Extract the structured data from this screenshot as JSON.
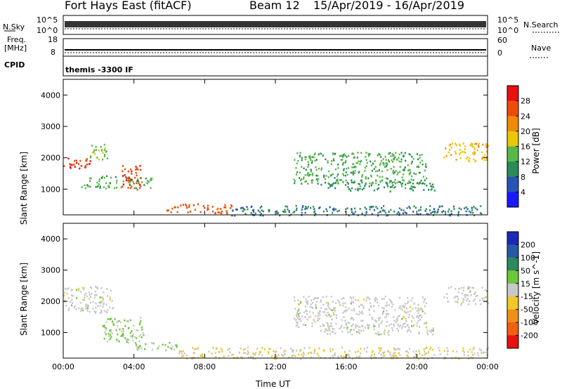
{
  "header": {
    "station": "Fort Hays East (fitACF)",
    "beam": "Beam 12",
    "dates": "15/Apr/2019 - 16/Apr/2019"
  },
  "top_panels": {
    "nsky_label": "N.Sky",
    "nsky_ticks": [
      "10^5",
      "10^0"
    ],
    "nsearch_label": "N.Search",
    "nsearch_ticks": [
      "10^5",
      "10^0"
    ],
    "freq_label": "Freq.",
    "freq_unit": "[MHz]",
    "freq_ticks": [
      "18",
      "8"
    ],
    "nave_label": "Nave",
    "nave_ticks": [
      "60",
      "0"
    ],
    "cpid_label": "CPID",
    "cpid_value": "themis -3300 IF"
  },
  "chart_data": [
    {
      "type": "heatmap",
      "title": "",
      "xlabel": "Time UT",
      "ylabel": "Slant Range [km]",
      "xlim": [
        "00:00",
        "24:00"
      ],
      "ylim": [
        180,
        4500
      ],
      "x_ticks": [
        "00:00",
        "04:00",
        "08:00",
        "12:00",
        "16:00",
        "20:00",
        "00:00"
      ],
      "y_ticks": [
        "1000",
        "2000",
        "3000",
        "4000"
      ],
      "colorbar": {
        "label": "Power [dB]",
        "ticks": [
          "4",
          "8",
          "12",
          "16",
          "20",
          "24",
          "28"
        ],
        "range": [
          0,
          30
        ],
        "colors": [
          "#1a1aff",
          "#2855b4",
          "#2a8c5a",
          "#58b848",
          "#e8c808",
          "#f08a0a",
          "#f04a0a",
          "#e81010"
        ]
      },
      "regions": [
        {
          "t0": 0.0,
          "t1": 1.5,
          "r0": 1650,
          "r1": 2050,
          "value": 26
        },
        {
          "t0": 1.5,
          "t1": 2.5,
          "r0": 1900,
          "r1": 2450,
          "value": 14
        },
        {
          "t0": 1.0,
          "t1": 5.0,
          "r0": 1050,
          "r1": 1450,
          "value": 12
        },
        {
          "t0": 3.3,
          "t1": 4.4,
          "r0": 1000,
          "r1": 1800,
          "value": 26
        },
        {
          "t0": 5.8,
          "t1": 9.5,
          "r0": 250,
          "r1": 550,
          "value": 24
        },
        {
          "t0": 9.5,
          "t1": 24.0,
          "r0": 180,
          "r1": 500,
          "value": 8
        },
        {
          "t0": 13.0,
          "t1": 20.5,
          "r0": 1200,
          "r1": 2200,
          "value": 12
        },
        {
          "t0": 14.5,
          "t1": 21.0,
          "r0": 950,
          "r1": 1250,
          "value": 10
        },
        {
          "t0": 21.5,
          "t1": 24.0,
          "r0": 1900,
          "r1": 2500,
          "value": 18
        }
      ]
    },
    {
      "type": "heatmap",
      "title": "",
      "xlabel": "Time UT",
      "ylabel": "Slant Range [km]",
      "xlim": [
        "00:00",
        "24:00"
      ],
      "ylim": [
        180,
        4500
      ],
      "x_ticks": [
        "00:00",
        "04:00",
        "08:00",
        "12:00",
        "16:00",
        "20:00",
        "00:00"
      ],
      "y_ticks": [
        "1000",
        "2000",
        "3000",
        "4000"
      ],
      "colorbar": {
        "label": "Velocity [m s^-1]",
        "ticks": [
          "200",
          "100",
          "50",
          "15",
          "-15",
          "-50",
          "-100",
          "-200"
        ],
        "range": [
          -250,
          250
        ],
        "colors": [
          "#1a2ab8",
          "#2a58a8",
          "#2c8a5c",
          "#6cc838",
          "#c8c8c8",
          "#f0c828",
          "#f09018",
          "#f06010",
          "#e81010"
        ]
      },
      "regions": [
        {
          "t0": 0.0,
          "t1": 2.8,
          "r0": 1650,
          "r1": 2500,
          "value": 0
        },
        {
          "t0": 2.2,
          "t1": 4.6,
          "r0": 700,
          "r1": 1500,
          "value": 30
        },
        {
          "t0": 3.8,
          "t1": 6.5,
          "r0": 450,
          "r1": 700,
          "value": 30
        },
        {
          "t0": 6.5,
          "t1": 24.0,
          "r0": 180,
          "r1": 550,
          "value": -25
        },
        {
          "t0": 13.0,
          "t1": 20.5,
          "r0": 1200,
          "r1": 2200,
          "value": 0
        },
        {
          "t0": 14.5,
          "t1": 21.0,
          "r0": 950,
          "r1": 1250,
          "value": 0
        },
        {
          "t0": 21.5,
          "t1": 24.0,
          "r0": 1900,
          "r1": 2500,
          "value": 0
        }
      ]
    }
  ]
}
